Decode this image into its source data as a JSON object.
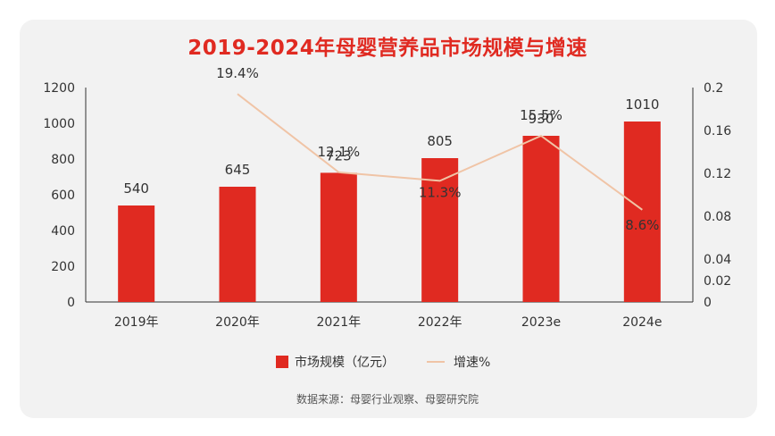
{
  "chart_data": {
    "type": "bar",
    "title": "2019-2024年母婴营养品市场规模与增速",
    "categories": [
      "2019年",
      "2020年",
      "2021年",
      "2022年",
      "2023e",
      "2024e"
    ],
    "series": [
      {
        "name": "市场规模（亿元）",
        "type": "bar",
        "axis": "left",
        "values": [
          540,
          645,
          723,
          805,
          930,
          1010
        ],
        "labels": [
          "540",
          "645",
          "723",
          "805",
          "930",
          "1010"
        ],
        "color": "#e02a21"
      },
      {
        "name": "增速%",
        "type": "line",
        "axis": "right",
        "values": [
          null,
          0.194,
          0.121,
          0.113,
          0.155,
          0.086
        ],
        "labels": [
          "",
          "19.4%",
          "12.1%",
          "11.3%",
          "15.5%",
          "8.6%"
        ],
        "color": "#f0c4a6"
      }
    ],
    "ylim": [
      0,
      1200
    ],
    "y_ticks": [
      "0",
      "200",
      "400",
      "600",
      "800",
      "1000",
      "1200"
    ],
    "y2lim": [
      0,
      0.2
    ],
    "y2_ticks": [
      "0",
      "0.02",
      "0.04",
      "0.06",
      "0.08",
      "0.1",
      "0.12",
      "0.14",
      "0.16",
      "0.18",
      "0.2"
    ],
    "legend_position": "bottom",
    "grid": false
  },
  "source": "数据来源：母婴行业观察、母婴研究院"
}
